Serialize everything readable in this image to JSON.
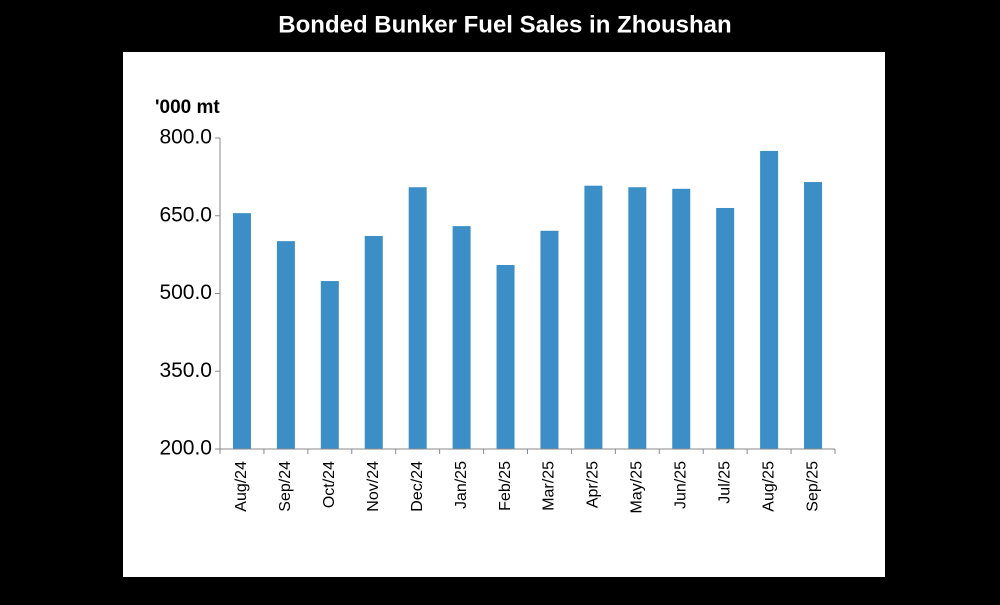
{
  "chart_data": {
    "type": "bar",
    "title": "Bonded Bunker Fuel Sales in Zhoushan",
    "y_label": "'000 mt",
    "categories": [
      "Aug/24",
      "Sep/24",
      "Oct/24",
      "Nov/24",
      "Dec/24",
      "Jan/25",
      "Feb/25",
      "Mar/25",
      "Apr/25",
      "May/25",
      "Jun/25",
      "Jul/25",
      "Aug/25",
      "Sep/25"
    ],
    "values": [
      655,
      601,
      524,
      611,
      705,
      630,
      555,
      621,
      708,
      705,
      702,
      665,
      775,
      715
    ],
    "color": "#3b8ec6",
    "ylim": [
      200,
      800
    ],
    "yticks": [
      {
        "value": 200,
        "label": "200.0"
      },
      {
        "value": 350,
        "label": "350.0"
      },
      {
        "value": 500,
        "label": "500.0"
      },
      {
        "value": 650,
        "label": "650.0"
      },
      {
        "value": 800,
        "label": "800.0"
      }
    ],
    "grid": false
  }
}
